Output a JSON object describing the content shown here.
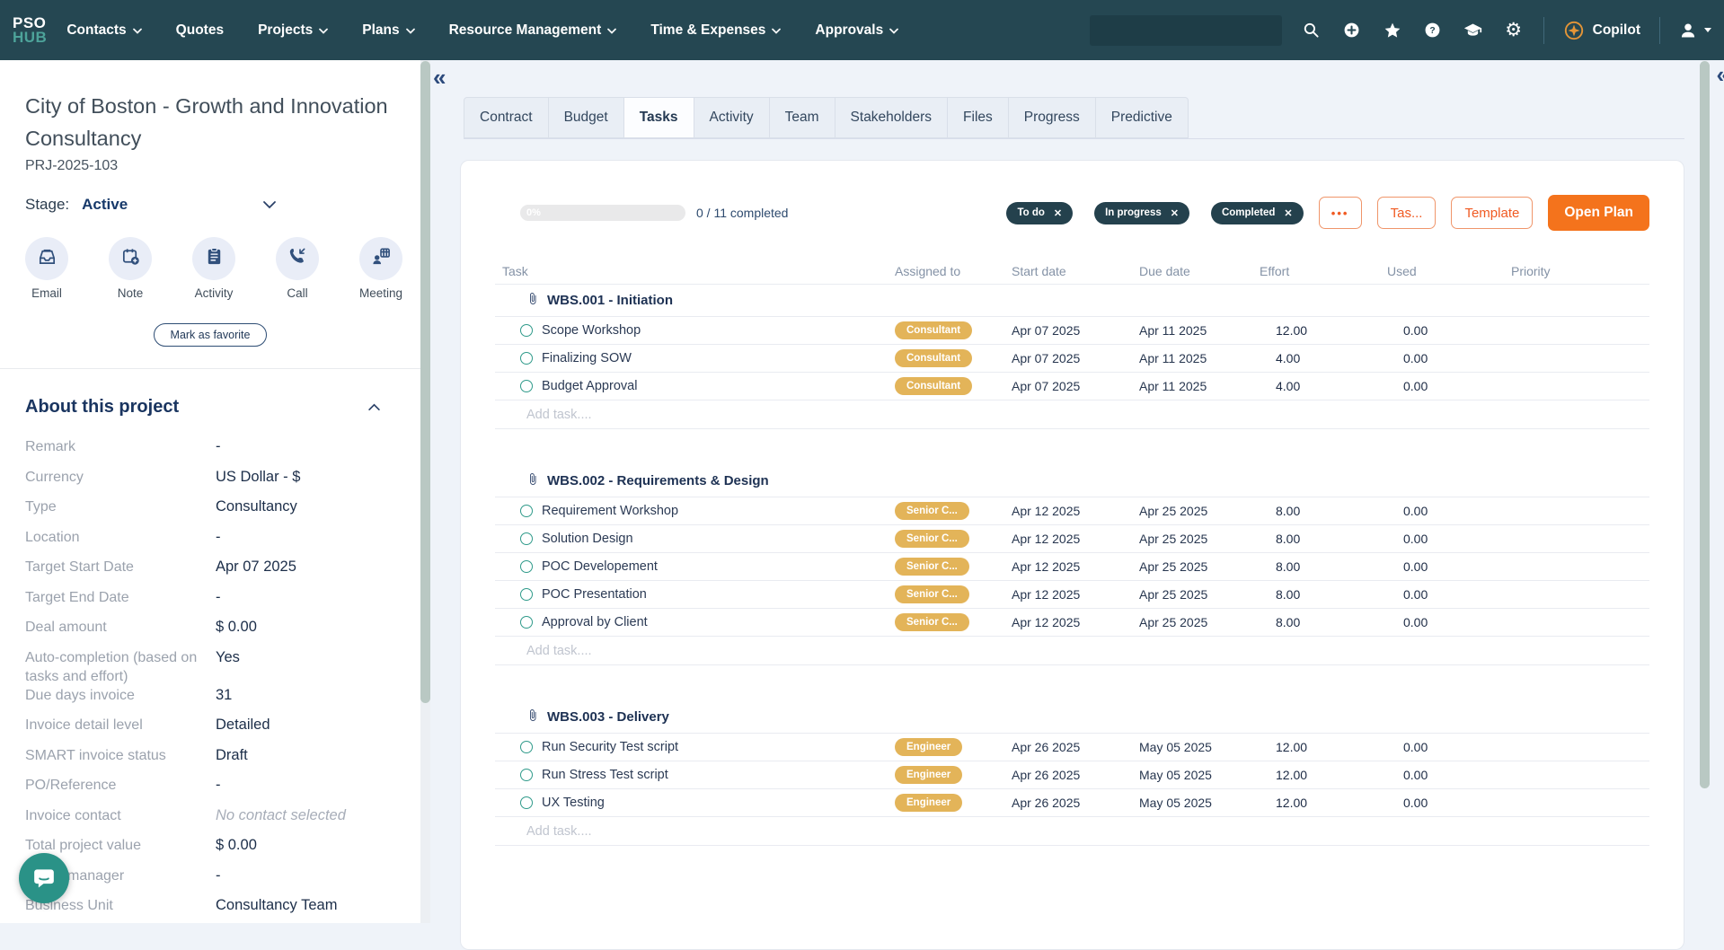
{
  "navbar": {
    "brand_top": "PSO",
    "brand_bottom": "HUB",
    "menu": [
      {
        "label": "Contacts",
        "caret": true
      },
      {
        "label": "Quotes",
        "caret": false
      },
      {
        "label": "Projects",
        "caret": true
      },
      {
        "label": "Plans",
        "caret": true
      },
      {
        "label": "Resource Management",
        "caret": true
      },
      {
        "label": "Time & Expenses",
        "caret": true
      },
      {
        "label": "Approvals",
        "caret": true
      }
    ],
    "search_value": "",
    "icons": [
      "search-icon",
      "plus-circle-icon",
      "star-icon",
      "help-icon",
      "academy-icon",
      "settings-icon"
    ],
    "copilot_label": "Copilot",
    "colors": {
      "navbar_bg": "#254752",
      "brand_accent": "#4da39a",
      "copilot_accent": "#e49537"
    }
  },
  "sidebar": {
    "title": "City of Boston - Growth and Innovation Consultancy",
    "project_id": "PRJ-2025-103",
    "stage_label": "Stage:",
    "stage_value": "Active",
    "actions": [
      {
        "label": "Email",
        "icon": "email-icon"
      },
      {
        "label": "Note",
        "icon": "note-icon"
      },
      {
        "label": "Activity",
        "icon": "activity-icon"
      },
      {
        "label": "Call",
        "icon": "call-icon"
      },
      {
        "label": "Meeting",
        "icon": "meeting-icon"
      }
    ],
    "favorite_label": "Mark as favorite",
    "about_title": "About this project",
    "fields": [
      {
        "label": "Remark",
        "value": "-"
      },
      {
        "label": "Currency",
        "value": "US Dollar - $"
      },
      {
        "label": "Type",
        "value": "Consultancy"
      },
      {
        "label": "Location",
        "value": "-"
      },
      {
        "label": "Target Start Date",
        "value": "Apr 07 2025"
      },
      {
        "label": "Target End Date",
        "value": "-"
      },
      {
        "label": "Deal amount",
        "value": "$ 0.00"
      },
      {
        "label": "Auto-completion (based on tasks and effort)",
        "value": "Yes"
      },
      {
        "label": "Due days invoice",
        "value": "31"
      },
      {
        "label": "Invoice detail level",
        "value": "Detailed"
      },
      {
        "label": "SMART invoice status",
        "value": "Draft"
      },
      {
        "label": "PO/Reference",
        "value": "-"
      },
      {
        "label": "Invoice contact",
        "value": "No contact selected",
        "muted": true
      },
      {
        "label": "Total project value",
        "value": "$ 0.00"
      },
      {
        "label": "manager",
        "value": "-",
        "indent": true
      },
      {
        "label": "Business Unit",
        "value": "Consultancy Team"
      }
    ]
  },
  "main": {
    "panel_collapse_glyph": "«",
    "tabs": [
      {
        "label": "Contract",
        "active": false
      },
      {
        "label": "Budget",
        "active": false
      },
      {
        "label": "Tasks",
        "active": true
      },
      {
        "label": "Activity",
        "active": false
      },
      {
        "label": "Team",
        "active": false
      },
      {
        "label": "Stakeholders",
        "active": false
      },
      {
        "label": "Files",
        "active": false
      },
      {
        "label": "Progress",
        "active": false
      },
      {
        "label": "Predictive",
        "active": false
      }
    ],
    "toolbar": {
      "progress_percent_label": "0%",
      "completed_label": "0 / 11 completed",
      "chips": [
        {
          "label": "To do"
        },
        {
          "label": "In progress"
        },
        {
          "label": "Completed"
        }
      ],
      "chip_remove_glyph": "✕",
      "more_label": "•••",
      "tasks_button_label": "Tas...",
      "template_button_label": "Template",
      "open_plan_label": "Open Plan",
      "accent_orange": "#f4731c"
    },
    "table": {
      "columns": [
        "Task",
        "Assigned to",
        "Start date",
        "Due date",
        "Effort",
        "Used",
        "Priority"
      ],
      "add_task_placeholder": "Add task....",
      "badge_color": "#e3b459",
      "groups": [
        {
          "title": "WBS.001 - Initiation",
          "tasks": [
            {
              "name": "Scope Workshop",
              "assignee": "Consultant",
              "start": "Apr 07 2025",
              "due": "Apr 11 2025",
              "effort": "12.00",
              "used": "0.00",
              "priority": ""
            },
            {
              "name": "Finalizing SOW",
              "assignee": "Consultant",
              "start": "Apr 07 2025",
              "due": "Apr 11 2025",
              "effort": "4.00",
              "used": "0.00",
              "priority": ""
            },
            {
              "name": "Budget Approval",
              "assignee": "Consultant",
              "start": "Apr 07 2025",
              "due": "Apr 11 2025",
              "effort": "4.00",
              "used": "0.00",
              "priority": ""
            }
          ]
        },
        {
          "title": "WBS.002 - Requirements & Design",
          "tasks": [
            {
              "name": "Requirement Workshop",
              "assignee": "Senior C...",
              "start": "Apr 12 2025",
              "due": "Apr 25 2025",
              "effort": "8.00",
              "used": "0.00",
              "priority": ""
            },
            {
              "name": "Solution Design",
              "assignee": "Senior C...",
              "start": "Apr 12 2025",
              "due": "Apr 25 2025",
              "effort": "8.00",
              "used": "0.00",
              "priority": ""
            },
            {
              "name": "POC Developement",
              "assignee": "Senior C...",
              "start": "Apr 12 2025",
              "due": "Apr 25 2025",
              "effort": "8.00",
              "used": "0.00",
              "priority": ""
            },
            {
              "name": "POC Presentation",
              "assignee": "Senior C...",
              "start": "Apr 12 2025",
              "due": "Apr 25 2025",
              "effort": "8.00",
              "used": "0.00",
              "priority": ""
            },
            {
              "name": "Approval by Client",
              "assignee": "Senior C...",
              "start": "Apr 12 2025",
              "due": "Apr 25 2025",
              "effort": "8.00",
              "used": "0.00",
              "priority": ""
            }
          ]
        },
        {
          "title": "WBS.003 - Delivery",
          "tasks": [
            {
              "name": "Run Security Test script",
              "assignee": "Engineer",
              "start": "Apr 26 2025",
              "due": "May 05 2025",
              "effort": "12.00",
              "used": "0.00",
              "priority": ""
            },
            {
              "name": "Run Stress Test script",
              "assignee": "Engineer",
              "start": "Apr 26 2025",
              "due": "May 05 2025",
              "effort": "12.00",
              "used": "0.00",
              "priority": ""
            },
            {
              "name": "UX Testing",
              "assignee": "Engineer",
              "start": "Apr 26 2025",
              "due": "May 05 2025",
              "effort": "12.00",
              "used": "0.00",
              "priority": ""
            }
          ]
        }
      ]
    }
  }
}
